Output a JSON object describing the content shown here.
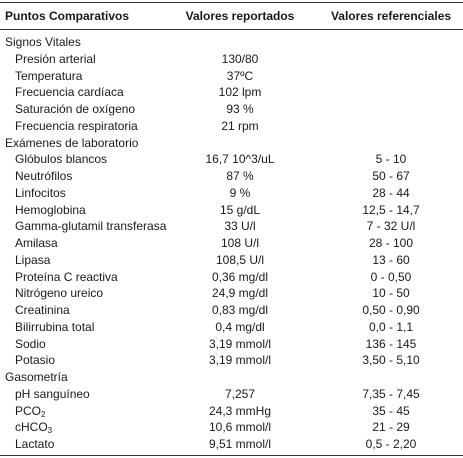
{
  "header": {
    "col1": "Puntos Comparativos",
    "col2": "Valores reportados",
    "col3": "Valores referenciales"
  },
  "rows": [
    {
      "type": "section",
      "label": "Signos Vitales"
    },
    {
      "type": "item",
      "label": "Presión arterial",
      "value": "130/80",
      "ref": ""
    },
    {
      "type": "item",
      "label": "Temperatura",
      "value": "37ºC",
      "ref": ""
    },
    {
      "type": "item",
      "label": "Frecuencia cardíaca",
      "value": "102 lpm",
      "ref": ""
    },
    {
      "type": "item",
      "label": "Saturación de oxígeno",
      "value": "93 %",
      "ref": ""
    },
    {
      "type": "item",
      "label": "Frecuencia respiratoria",
      "value": "21 rpm",
      "ref": ""
    },
    {
      "type": "section",
      "label": "Exámenes de laboratorio"
    },
    {
      "type": "item",
      "label": "Glóbulos blancos",
      "value": "16,7 10^3/uL",
      "ref": "5 - 10"
    },
    {
      "type": "item",
      "label": "Neutrófilos",
      "value": "87 %",
      "ref": "50 - 67"
    },
    {
      "type": "item",
      "label": "Linfocitos",
      "value": "9 %",
      "ref": "28 - 44"
    },
    {
      "type": "item",
      "label": "Hemoglobina",
      "value": "15 g/dL",
      "ref": "12,5 - 14,7"
    },
    {
      "type": "item",
      "label": "Gamma-glutamil transferasa",
      "value": "33 U/l",
      "ref": "7 - 32 U/l"
    },
    {
      "type": "item",
      "label": "Amilasa",
      "value": "108 U/l",
      "ref": "28 - 100"
    },
    {
      "type": "item",
      "label": "Lipasa",
      "value": "108,5 U/l",
      "ref": "13 - 60"
    },
    {
      "type": "item",
      "label": "Proteína C reactiva",
      "value": "0,36 mg/dl",
      "ref": "0 - 0,50"
    },
    {
      "type": "item",
      "label": "Nitrógeno ureico",
      "value": "24,9 mg/dl",
      "ref": "10 - 50"
    },
    {
      "type": "item",
      "label": "Creatinina",
      "value": "0,83 mg/dl",
      "ref": "0,50 - 0,90"
    },
    {
      "type": "item",
      "label": "Bilirrubina total",
      "value": "0,4 mg/dl",
      "ref": "0,0 - 1,1"
    },
    {
      "type": "item",
      "label": "Sodio",
      "value": "3,19 mmol/l",
      "ref": "136 - 145"
    },
    {
      "type": "item",
      "label": "Potasio",
      "value": "3,19 mmol/l",
      "ref": "3,50 - 5,10"
    },
    {
      "type": "section",
      "label": "Gasometría"
    },
    {
      "type": "item",
      "label": "pH sanguíneo",
      "value": "7,257",
      "ref": "7,35 - 7,45"
    },
    {
      "type": "item",
      "label_main": "PCO",
      "label_sub": "2",
      "value": "24,3 mmHg",
      "ref": "35 - 45"
    },
    {
      "type": "item",
      "label_main": "cHCO",
      "label_sub": "3",
      "value": "10,6 mmol/l",
      "ref": "21 - 29"
    },
    {
      "type": "item",
      "label": "Lactato",
      "value": "9,51 mmol/l",
      "ref": "0,5 - 2,20"
    }
  ]
}
